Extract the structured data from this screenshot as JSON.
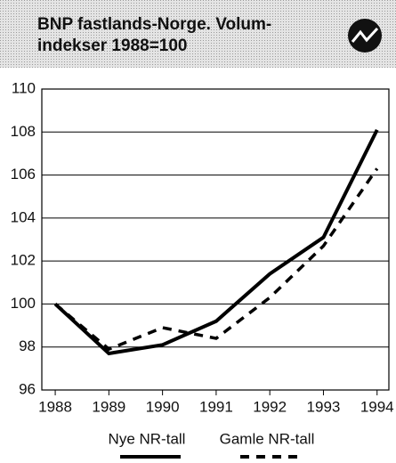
{
  "chart_data": {
    "type": "line",
    "title": [
      "BNP fastlands-Norge. Volum-",
      "indekser 1988=100"
    ],
    "x": [
      1988,
      1989,
      1990,
      1991,
      1992,
      1993,
      1994
    ],
    "xlim": [
      1987.75,
      1994.22
    ],
    "xticks": [
      1988,
      1989,
      1990,
      1991,
      1992,
      1993,
      1994
    ],
    "ylim": [
      96,
      110
    ],
    "yticks": [
      96,
      98,
      100,
      102,
      104,
      106,
      108,
      110
    ],
    "grid": true,
    "legend": "bottom",
    "series": [
      {
        "name": "Nye NR-tall",
        "color": "#000000",
        "style": "solid",
        "values": [
          100,
          97.7,
          98.1,
          99.2,
          101.4,
          103.1,
          108.1
        ]
      },
      {
        "name": "Gamle NR-tall",
        "color": "#000000",
        "style": "dashed",
        "values": [
          100,
          97.9,
          98.9,
          98.4,
          100.3,
          102.7,
          106.3
        ]
      }
    ]
  }
}
